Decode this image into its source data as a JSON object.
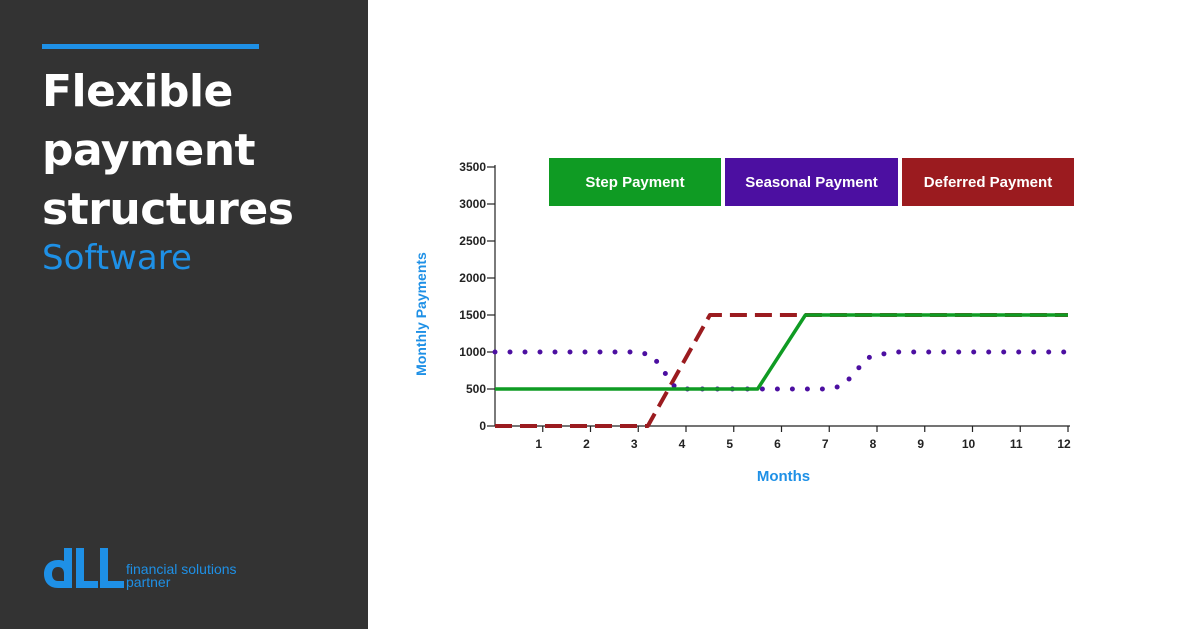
{
  "sidebar": {
    "title_lines": [
      "Flexible",
      "payment",
      "structures"
    ],
    "subtitle": "Software",
    "accent_color": "#1e90e6",
    "background_color": "#333333"
  },
  "logo": {
    "mark": "dll",
    "tagline_line1": "financial solutions",
    "tagline_line2": "partner"
  },
  "chart_data": {
    "type": "line",
    "title": "",
    "xlabel": "Months",
    "ylabel": "Monthly Payments",
    "xlim": [
      0,
      12
    ],
    "ylim": [
      0,
      3500
    ],
    "x_ticks": [
      1,
      2,
      3,
      4,
      5,
      6,
      7,
      8,
      9,
      10,
      11,
      12
    ],
    "y_ticks": [
      0,
      500,
      1000,
      1500,
      2000,
      2500,
      3000,
      3500
    ],
    "grid": false,
    "legend_position": "top",
    "series": [
      {
        "name": "Step Payment",
        "color": "#0f9b23",
        "line_style": "solid",
        "points": [
          [
            0,
            500
          ],
          [
            5.5,
            500
          ],
          [
            6.5,
            1500
          ],
          [
            12,
            1500
          ]
        ]
      },
      {
        "name": "Seasonal Payment",
        "color": "#4c0fa1",
        "line_style": "dotted",
        "points": [
          [
            0,
            1000
          ],
          [
            3,
            1000
          ],
          [
            3.3,
            950
          ],
          [
            3.8,
            500
          ],
          [
            7,
            500
          ],
          [
            7.3,
            550
          ],
          [
            7.8,
            920
          ],
          [
            8.3,
            1000
          ],
          [
            12,
            1000
          ]
        ]
      },
      {
        "name": "Deferred Payment",
        "color": "#9b1b1f",
        "line_style": "dashed",
        "points": [
          [
            0,
            0
          ],
          [
            3.2,
            0
          ],
          [
            4.5,
            1500
          ],
          [
            12,
            1500
          ]
        ]
      }
    ]
  }
}
